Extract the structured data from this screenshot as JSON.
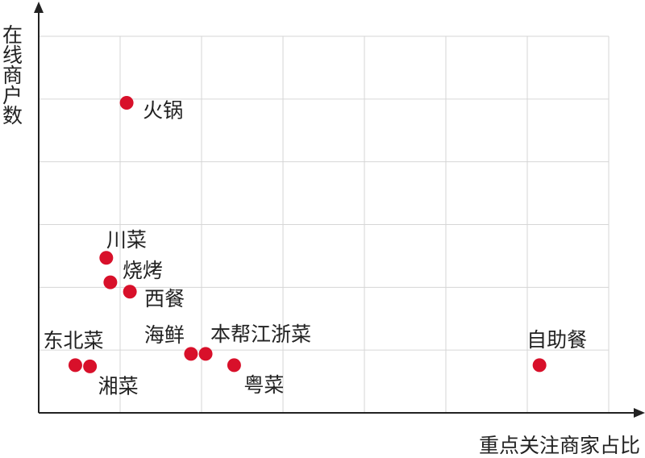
{
  "chart_data": {
    "type": "scatter",
    "title": "",
    "xlabel": "重点关注商家占比",
    "ylabel": "在线商户数",
    "xlim": [
      0,
      7
    ],
    "ylim": [
      0,
      6
    ],
    "grid": true,
    "x_tick_labels": false,
    "y_tick_labels": false,
    "point_color": "#d8102a",
    "points": [
      {
        "label": "火锅",
        "x": 1.08,
        "y": 4.94
      },
      {
        "label": "川菜",
        "x": 0.83,
        "y": 2.47
      },
      {
        "label": "烧烤",
        "x": 0.88,
        "y": 2.08
      },
      {
        "label": "西餐",
        "x": 1.12,
        "y": 1.93
      },
      {
        "label": "东北菜",
        "x": 0.45,
        "y": 0.76
      },
      {
        "label": "湘菜",
        "x": 0.63,
        "y": 0.74
      },
      {
        "label": "海鲜",
        "x": 1.87,
        "y": 0.94
      },
      {
        "label": "本帮江浙菜",
        "x": 2.05,
        "y": 0.94
      },
      {
        "label": "粤菜",
        "x": 2.4,
        "y": 0.76
      },
      {
        "label": "自助餐",
        "x": 6.15,
        "y": 0.76
      }
    ]
  }
}
